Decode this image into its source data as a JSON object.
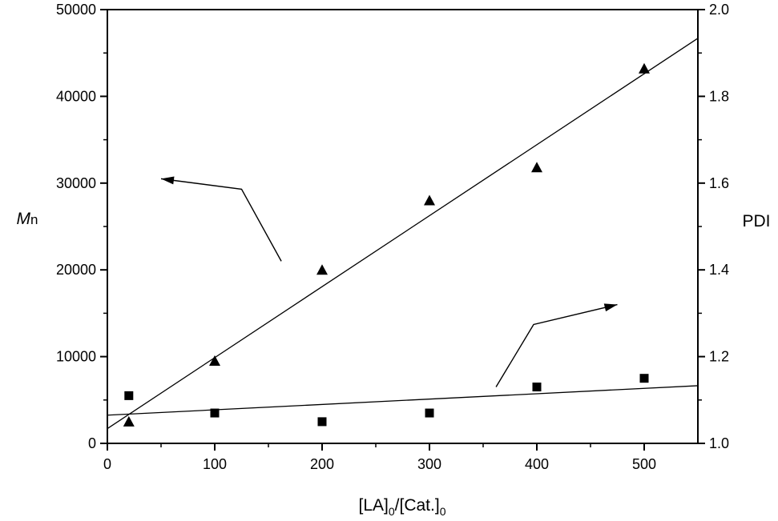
{
  "chart_data": {
    "type": "scatter",
    "x_axis": {
      "label_main": "[LA]",
      "label_sub1": "0",
      "label_mid": "/[Cat.]",
      "label_sub2": "0",
      "range": [
        0,
        550
      ],
      "ticks": [
        0,
        100,
        200,
        300,
        400,
        500
      ],
      "tick_labels": [
        "0",
        "100",
        "200",
        "300",
        "400",
        "500"
      ]
    },
    "y_left": {
      "label_main": "M",
      "label_sub": "n",
      "range": [
        0,
        50000
      ],
      "ticks": [
        0,
        10000,
        20000,
        30000,
        40000,
        50000
      ],
      "tick_labels": [
        "0",
        "10000",
        "20000",
        "30000",
        "40000",
        "50000"
      ]
    },
    "y_right": {
      "label": "PDI",
      "range": [
        1.0,
        2.0
      ],
      "ticks": [
        1.0,
        1.2,
        1.4,
        1.6,
        1.8,
        2.0
      ],
      "tick_labels": [
        "1.0",
        "1.2",
        "1.4",
        "1.6",
        "1.8",
        "2.0"
      ]
    },
    "series": [
      {
        "marker": "triangle",
        "axis": "left",
        "x": [
          20,
          100,
          200,
          300,
          400,
          500
        ],
        "y": [
          2500,
          9500,
          20000,
          28000,
          31800,
          43200
        ],
        "fit": [
          [
            0,
            1700
          ],
          [
            550,
            46700
          ]
        ]
      },
      {
        "marker": "square",
        "axis": "right",
        "x": [
          20,
          100,
          200,
          300,
          400,
          500
        ],
        "y": [
          1.11,
          1.07,
          1.05,
          1.07,
          1.13,
          1.15
        ],
        "fit": [
          [
            0,
            1.065
          ],
          [
            550,
            1.133
          ]
        ]
      }
    ],
    "annotations": [
      {
        "type": "arrow",
        "direction": "left",
        "points": [
          [
            162,
            21000
          ],
          [
            125,
            29300
          ],
          [
            50,
            30500
          ]
        ]
      },
      {
        "type": "arrow",
        "direction": "right",
        "points": [
          [
            362,
            6500
          ],
          [
            397,
            13700
          ],
          [
            475,
            16000
          ]
        ]
      }
    ],
    "grid": false,
    "legend": "none"
  }
}
